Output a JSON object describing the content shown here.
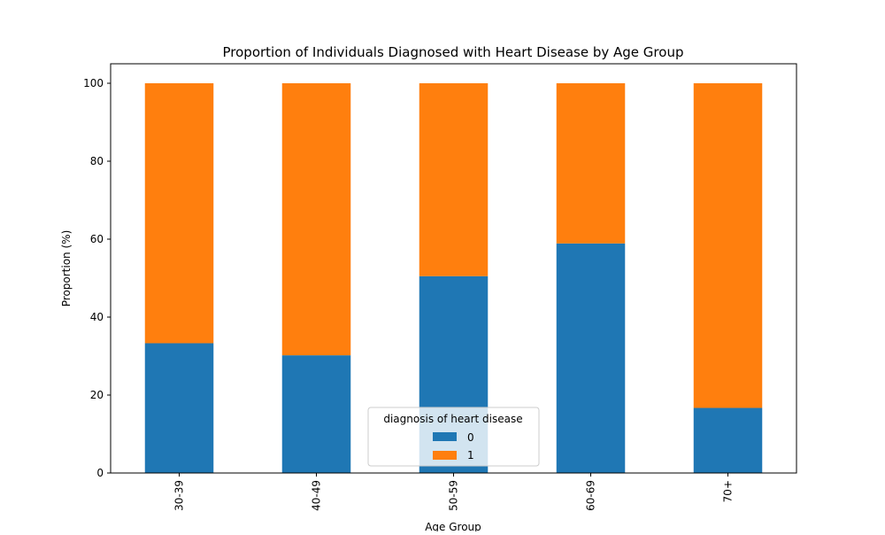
{
  "chart_data": {
    "type": "bar",
    "stacked": true,
    "title": "Proportion of Individuals Diagnosed with Heart Disease by Age Group",
    "xlabel": "Age Group",
    "ylabel": "Proportion (%)",
    "categories": [
      "30-39",
      "40-49",
      "50-59",
      "60-69",
      "70+"
    ],
    "series": [
      {
        "name": "0",
        "color": "#1f77b4",
        "values": [
          33.3,
          30.2,
          50.5,
          58.9,
          16.7
        ]
      },
      {
        "name": "1",
        "color": "#ff7f0e",
        "values": [
          66.7,
          69.8,
          49.5,
          41.1,
          83.3
        ]
      }
    ],
    "ylim": [
      0,
      105
    ],
    "yticks": [
      0,
      20,
      40,
      60,
      80,
      100
    ],
    "grid": false,
    "legend": {
      "title": "diagnosis of heart disease",
      "placement": "lower center"
    }
  }
}
